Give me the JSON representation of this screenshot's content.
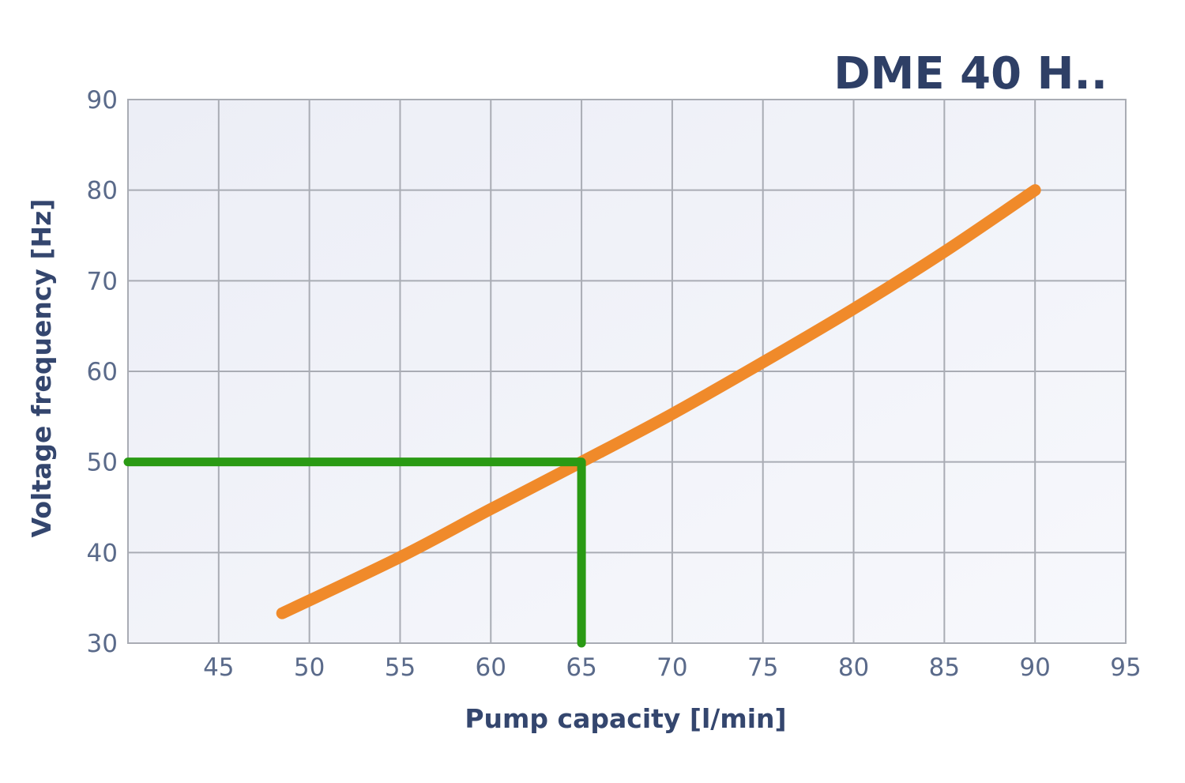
{
  "chart_data": {
    "type": "line",
    "title": "DME 40 H..",
    "xlabel": "Pump capacity [l/min]",
    "ylabel": "Voltage frequency [Hz]",
    "xlim": [
      40,
      95
    ],
    "ylim": [
      30,
      90
    ],
    "x_ticks": [
      45,
      50,
      55,
      60,
      65,
      70,
      75,
      80,
      85,
      90,
      95
    ],
    "y_ticks": [
      30,
      40,
      50,
      60,
      70,
      80,
      90
    ],
    "grid": true,
    "legend": "none",
    "series": [
      {
        "color": "#f08a2a",
        "x": [
          48.5,
          55,
          60,
          65,
          70,
          75,
          80,
          85,
          90
        ],
        "y": [
          33.3,
          39.5,
          44.8,
          50,
          55.3,
          61,
          66.9,
          73.2,
          80
        ]
      }
    ],
    "annotations": [
      {
        "color": "#2a9a14",
        "x": [
          40,
          65,
          65
        ],
        "y": [
          50,
          50,
          30
        ]
      }
    ]
  },
  "colors": {
    "plot_background": "#eff1f7",
    "grid": "#a9acb4",
    "curve": "#f08a2a",
    "reference_line": "#2a9a14"
  }
}
